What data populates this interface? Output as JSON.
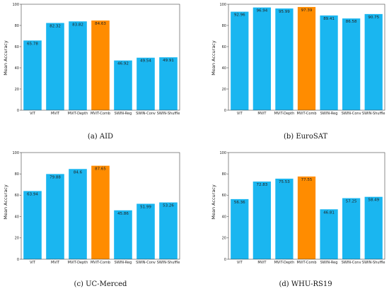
{
  "colors": {
    "bar": "#1ab6f0",
    "highlight": "#ff8c00"
  },
  "chart_data": [
    {
      "type": "bar",
      "caption": "(a) AID",
      "ylabel": "Mean Accuracy",
      "ylim": [
        0,
        100
      ],
      "yticks": [
        0,
        20,
        40,
        60,
        80,
        100
      ],
      "categories": [
        "ViT",
        "MViT",
        "MViT-Depth",
        "MViT-Comb",
        "SWIN-Reg",
        "SWIN-Conv",
        "SWIN-Shuffle"
      ],
      "values": [
        65.78,
        82.32,
        83.82,
        84.63,
        46.92,
        49.54,
        49.91
      ],
      "value_labels": [
        "65.78",
        "82.32",
        "83.82",
        "84.63",
        "46.92",
        "49.54",
        "49.91"
      ],
      "highlight_index": 3
    },
    {
      "type": "bar",
      "caption": "(b) EuroSAT",
      "ylabel": "Mean Accuracy",
      "ylim": [
        0,
        100
      ],
      "yticks": [
        0,
        20,
        40,
        60,
        80,
        100
      ],
      "categories": [
        "ViT",
        "MViT",
        "MViT-Depth",
        "MViT-Comb",
        "SWIN-Reg",
        "SWIN-Conv",
        "SWIN-Shuffle"
      ],
      "values": [
        92.96,
        96.94,
        95.99,
        97.39,
        89.41,
        86.58,
        90.75
      ],
      "value_labels": [
        "92.96",
        "96.94",
        "95.99",
        "97.39",
        "89.41",
        "86.58",
        "90.75"
      ],
      "highlight_index": 3
    },
    {
      "type": "bar",
      "caption": "(c) UC-Merced",
      "ylabel": "Mean Accuracy",
      "ylim": [
        0,
        100
      ],
      "yticks": [
        0,
        20,
        40,
        60,
        80,
        100
      ],
      "categories": [
        "ViT",
        "MViT",
        "MViT-Depth",
        "MViT-Comb",
        "SWIN-Reg",
        "SWIN-Conv",
        "SWIN-Shuffle"
      ],
      "values": [
        63.94,
        79.88,
        84.6,
        87.65,
        45.86,
        51.99,
        53.26
      ],
      "value_labels": [
        "63.94",
        "79.88",
        "84.6",
        "87.65",
        "45.86",
        "51.99",
        "53.26"
      ],
      "highlight_index": 3
    },
    {
      "type": "bar",
      "caption": "(d) WHU-RS19",
      "ylabel": "Mean Accuracy",
      "ylim": [
        0,
        100
      ],
      "yticks": [
        0,
        20,
        40,
        60,
        80,
        100
      ],
      "categories": [
        "ViT",
        "MViT",
        "MViT-Depth",
        "MViT-Comb",
        "SWIN-Reg",
        "SWIN-Conv",
        "SWIN-Shuffle"
      ],
      "values": [
        56.36,
        72.83,
        75.53,
        77.55,
        46.81,
        57.25,
        58.49
      ],
      "value_labels": [
        "56.36",
        "72.83",
        "75.53",
        "77.55",
        "46.81",
        "57.25",
        "58.49"
      ],
      "highlight_index": 3
    }
  ]
}
